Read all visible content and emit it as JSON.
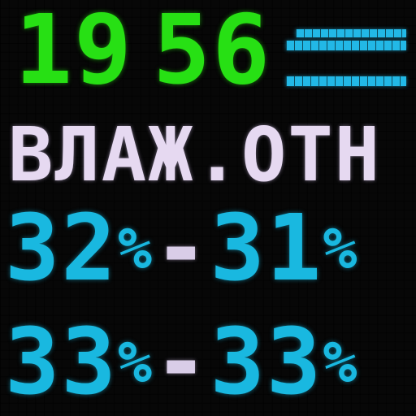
{
  "display": {
    "time": {
      "hours": "19",
      "minutes": "56"
    },
    "weather_icon": "cloud-icon",
    "location_label": "ВЛАЖ.ОТН",
    "rows": [
      {
        "from": "32",
        "from_unit": "%",
        "separator": "-",
        "to": "31",
        "to_unit": "%"
      },
      {
        "from": "33",
        "from_unit": "%",
        "separator": "-",
        "to": "33",
        "to_unit": "%"
      }
    ]
  },
  "colors": {
    "time": "#27e014",
    "label": "#e6d9f1",
    "values": "#19b8e0",
    "background": "#050505"
  }
}
